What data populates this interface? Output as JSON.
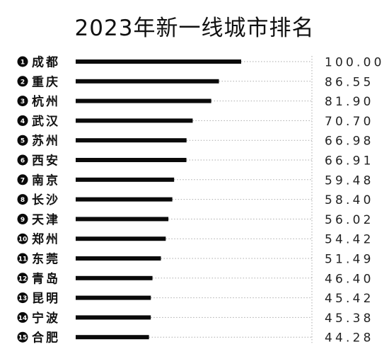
{
  "chart_data": {
    "type": "bar",
    "orientation": "horizontal",
    "title": "2023年新一线城市排名",
    "ranks": [
      "1",
      "2",
      "3",
      "4",
      "5",
      "6",
      "7",
      "8",
      "9",
      "10",
      "11",
      "12",
      "13",
      "14",
      "15"
    ],
    "categories": [
      "成都",
      "重庆",
      "杭州",
      "武汉",
      "苏州",
      "西安",
      "南京",
      "长沙",
      "天津",
      "郑州",
      "东莞",
      "青岛",
      "昆明",
      "宁波",
      "合肥"
    ],
    "values": [
      100.0,
      86.55,
      81.9,
      70.7,
      66.98,
      66.91,
      59.48,
      58.4,
      56.02,
      54.42,
      51.49,
      46.4,
      45.42,
      45.38,
      44.28
    ],
    "value_labels": [
      "100.00",
      "86.55",
      "81.90",
      "70.70",
      "66.98",
      "66.91",
      "59.48",
      "58.40",
      "56.02",
      "54.42",
      "51.49",
      "46.40",
      "45.42",
      "45.38",
      "44.28"
    ],
    "xlim": [
      0,
      100
    ],
    "grid": false,
    "legend": "none",
    "colors": {
      "bar": "#0a0a0a",
      "badge": "#0a0a0a",
      "badge_text": "#ffffff",
      "guide": "#aaaaaa"
    }
  }
}
